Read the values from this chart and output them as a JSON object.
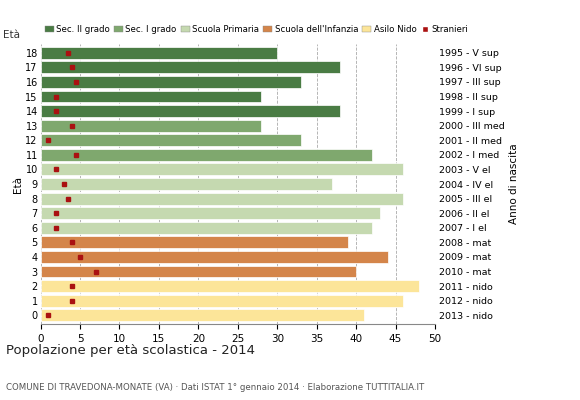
{
  "ages": [
    0,
    1,
    2,
    3,
    4,
    5,
    6,
    7,
    8,
    9,
    10,
    11,
    12,
    13,
    14,
    15,
    16,
    17,
    18
  ],
  "values": [
    41,
    46,
    48,
    40,
    44,
    39,
    42,
    43,
    46,
    37,
    46,
    42,
    33,
    28,
    38,
    28,
    33,
    38,
    30
  ],
  "stranieri": [
    1,
    4,
    4,
    7,
    5,
    4,
    2,
    2,
    3.5,
    3,
    2,
    4.5,
    1,
    4,
    2,
    2,
    4.5,
    4,
    3.5
  ],
  "anno_labels_by_age": [
    "2013 - nido",
    "2012 - nido",
    "2011 - nido",
    "2010 - mat",
    "2009 - mat",
    "2008 - mat",
    "2007 - I el",
    "2006 - II el",
    "2005 - III el",
    "2004 - IV el",
    "2003 - V el",
    "2002 - I med",
    "2001 - II med",
    "2000 - III med",
    "1999 - I sup",
    "1998 - II sup",
    "1997 - III sup",
    "1996 - VI sup",
    "1995 - V sup"
  ],
  "bar_colors_by_age": [
    "#fce599",
    "#fce599",
    "#fce599",
    "#d4854a",
    "#d4854a",
    "#d4854a",
    "#c5d9b0",
    "#c5d9b0",
    "#c5d9b0",
    "#c5d9b0",
    "#c5d9b0",
    "#7fa86e",
    "#7fa86e",
    "#7fa86e",
    "#4a7c44",
    "#4a7c44",
    "#4a7c44",
    "#4a7c44",
    "#4a7c44"
  ],
  "legend_labels": [
    "Sec. II grado",
    "Sec. I grado",
    "Scuola Primaria",
    "Scuola dell'Infanzia",
    "Asilo Nido",
    "Stranieri"
  ],
  "legend_colors": [
    "#4a7c44",
    "#7fa86e",
    "#c5d9b0",
    "#d4854a",
    "#fce599",
    "#aa1111"
  ],
  "title": "Popolazione per età scolastica - 2014",
  "subtitle": "COMUNE DI TRAVEDONA-MONATE (VA) · Dati ISTAT 1° gennaio 2014 · Elaborazione TUTTITALIA.IT",
  "ylabel_left": "Età",
  "ylabel_right": "Anno di nascita",
  "xlim": [
    0,
    50
  ],
  "xticks": [
    0,
    5,
    10,
    15,
    20,
    25,
    30,
    35,
    40,
    45,
    50
  ],
  "background_color": "#ffffff",
  "stranieri_color": "#aa1111",
  "bar_height": 0.82
}
